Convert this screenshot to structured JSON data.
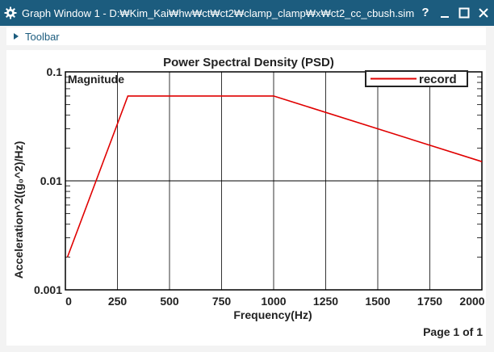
{
  "window": {
    "title": "Graph Window 1 - D:₩Kim_Kai₩hw₩ct₩ct2₩clamp_clamp₩x₩ct2_cc_cbush.sim",
    "help_label": "?",
    "icons": [
      "gear-icon",
      "minimize-icon",
      "maximize-icon",
      "close-icon"
    ]
  },
  "toolbar": {
    "label": "Toolbar"
  },
  "colors": {
    "titlebar": "#1c5c7e",
    "series": "#e00000",
    "grid": "#000000"
  },
  "chart_data": {
    "type": "line",
    "title": "Power Spectral Density (PSD)",
    "corner_label": "Magnitude",
    "xlabel": "Frequency(Hz)",
    "ylabel": "Acceleration^2((g₀^2)/Hz)",
    "xlim": [
      0,
      2000
    ],
    "ylim": [
      0.001,
      0.1
    ],
    "yscale": "log",
    "x_ticks": [
      0,
      250,
      500,
      750,
      1000,
      1250,
      1500,
      1750,
      2000
    ],
    "y_ticks": [
      {
        "value": 0.001,
        "label": "0.001"
      },
      {
        "value": 0.01,
        "label": "0.01"
      },
      {
        "value": 0.1,
        "label": "0.1"
      }
    ],
    "grid": true,
    "legend": {
      "position": "top-right"
    },
    "series": [
      {
        "name": "record",
        "color": "#e00000",
        "points": [
          [
            10,
            0.002
          ],
          [
            300,
            0.06
          ],
          [
            1000,
            0.06
          ],
          [
            2000,
            0.015
          ]
        ]
      }
    ]
  },
  "footer": {
    "page": "Page 1 of 1"
  }
}
